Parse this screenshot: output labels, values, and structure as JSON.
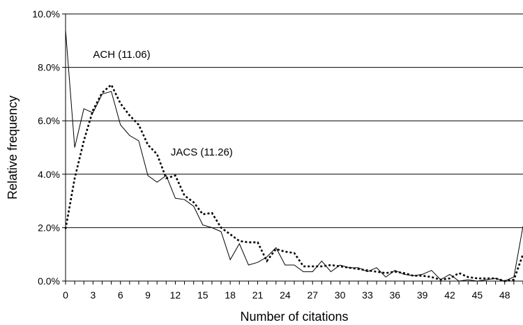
{
  "chart_data": {
    "type": "line",
    "xlabel": "Number of citations",
    "ylabel": "Relative frequency",
    "x_ticks": [
      0,
      3,
      6,
      9,
      12,
      15,
      18,
      21,
      24,
      27,
      30,
      33,
      36,
      39,
      42,
      45,
      48
    ],
    "y_ticks": [
      "0.0%",
      "2.0%",
      "4.0%",
      "6.0%",
      "8.0%",
      "10.0%"
    ],
    "xlim": [
      0,
      50
    ],
    "ylim": [
      0,
      10
    ],
    "grid": "horizontal",
    "series": [
      {
        "name": "ACH (11.06)",
        "style": "solid",
        "color": "#000000",
        "x": [
          0,
          1,
          2,
          3,
          4,
          5,
          6,
          7,
          8,
          9,
          10,
          11,
          12,
          13,
          14,
          15,
          16,
          17,
          18,
          19,
          20,
          21,
          22,
          23,
          24,
          25,
          26,
          27,
          28,
          29,
          30,
          31,
          32,
          33,
          34,
          35,
          36,
          37,
          38,
          39,
          40,
          41,
          42,
          43,
          44,
          45,
          46,
          47,
          48,
          49,
          50
        ],
        "values": [
          9.4,
          5.0,
          6.45,
          6.3,
          7.0,
          7.1,
          5.85,
          5.45,
          5.25,
          3.95,
          3.7,
          3.95,
          3.1,
          3.05,
          2.8,
          2.1,
          2.0,
          1.85,
          0.8,
          1.4,
          0.6,
          0.7,
          0.9,
          1.25,
          0.6,
          0.6,
          0.35,
          0.35,
          0.75,
          0.35,
          0.6,
          0.5,
          0.5,
          0.35,
          0.5,
          0.15,
          0.4,
          0.25,
          0.2,
          0.25,
          0.4,
          0.05,
          0.25,
          0.0,
          0.05,
          0.0,
          0.05,
          0.1,
          0.0,
          0.15,
          2.05
        ]
      },
      {
        "name": "JACS (11.26)",
        "style": "dotted",
        "color": "#000000",
        "x": [
          0,
          1,
          2,
          3,
          4,
          5,
          6,
          7,
          8,
          9,
          10,
          11,
          12,
          13,
          14,
          15,
          16,
          17,
          18,
          19,
          20,
          21,
          22,
          23,
          24,
          25,
          26,
          27,
          28,
          29,
          30,
          31,
          32,
          33,
          34,
          35,
          36,
          37,
          38,
          39,
          40,
          41,
          42,
          43,
          44,
          45,
          46,
          47,
          48,
          49,
          50
        ],
        "values": [
          1.95,
          3.85,
          5.25,
          6.4,
          7.05,
          7.35,
          6.65,
          6.2,
          5.85,
          5.1,
          4.75,
          3.85,
          3.95,
          3.2,
          2.95,
          2.5,
          2.55,
          2.0,
          1.75,
          1.5,
          1.45,
          1.45,
          0.75,
          1.2,
          1.1,
          1.05,
          0.55,
          0.55,
          0.55,
          0.6,
          0.55,
          0.5,
          0.45,
          0.4,
          0.35,
          0.3,
          0.35,
          0.3,
          0.2,
          0.2,
          0.15,
          0.05,
          0.1,
          0.3,
          0.15,
          0.1,
          0.1,
          0.1,
          0.0,
          0.05,
          1.0
        ]
      }
    ],
    "annotations": [
      {
        "text": "ACH (11.06)",
        "x": 3.0,
        "y": 8.35
      },
      {
        "text": "JACS (11.26)",
        "x": 11.5,
        "y": 4.7
      }
    ]
  }
}
